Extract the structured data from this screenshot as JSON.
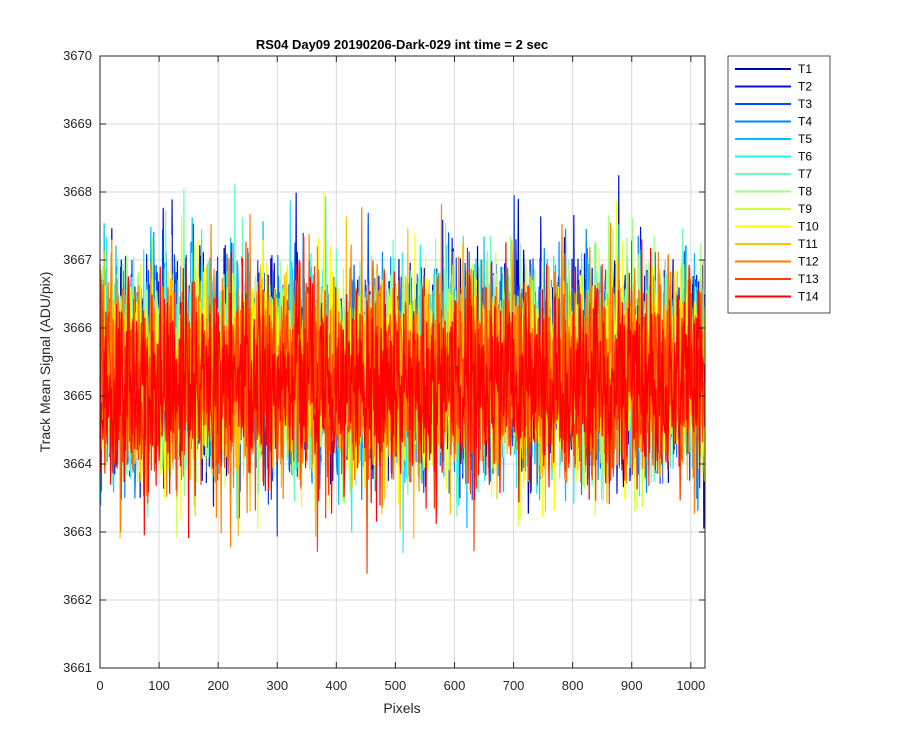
{
  "chart_data": {
    "type": "line",
    "title": "RS04 Day09 20190206-Dark-029 int time = 2 sec",
    "xlabel": "Pixels",
    "ylabel": "Track Mean Signal (ADU/pix)",
    "xlim": [
      0,
      1024
    ],
    "ylim": [
      3661,
      3670
    ],
    "xticks": [
      0,
      100,
      200,
      300,
      400,
      500,
      600,
      700,
      800,
      900,
      1000
    ],
    "yticks": [
      3661,
      3662,
      3663,
      3664,
      3665,
      3666,
      3667,
      3668,
      3669,
      3670
    ],
    "grid": true,
    "legend_position": "outside-top-right",
    "points_per_series": 1024,
    "series": [
      {
        "name": "T1",
        "color": "#0000b3",
        "mean": 3665.5,
        "spread": 0.75
      },
      {
        "name": "T2",
        "color": "#0014d9",
        "mean": 3665.5,
        "spread": 0.75
      },
      {
        "name": "T3",
        "color": "#004cff",
        "mean": 3665.5,
        "spread": 0.75
      },
      {
        "name": "T4",
        "color": "#0088ff",
        "mean": 3665.4,
        "spread": 0.75
      },
      {
        "name": "T5",
        "color": "#00c0ff",
        "mean": 3665.4,
        "spread": 0.75
      },
      {
        "name": "T6",
        "color": "#24f0f0",
        "mean": 3665.4,
        "spread": 0.75
      },
      {
        "name": "T7",
        "color": "#6cffb8",
        "mean": 3665.4,
        "spread": 0.75
      },
      {
        "name": "T8",
        "color": "#9cff80",
        "mean": 3665.4,
        "spread": 0.75
      },
      {
        "name": "T9",
        "color": "#d0ff40",
        "mean": 3665.3,
        "spread": 0.75
      },
      {
        "name": "T10",
        "color": "#ffff00",
        "mean": 3665.3,
        "spread": 0.75
      },
      {
        "name": "T11",
        "color": "#ffc000",
        "mean": 3665.3,
        "spread": 0.75
      },
      {
        "name": "T12",
        "color": "#ff8000",
        "mean": 3665.3,
        "spread": 0.75
      },
      {
        "name": "T13",
        "color": "#ff4000",
        "mean": 3665.2,
        "spread": 0.75
      },
      {
        "name": "T14",
        "color": "#ff0000",
        "mean": 3665.2,
        "spread": 0.75
      }
    ]
  }
}
